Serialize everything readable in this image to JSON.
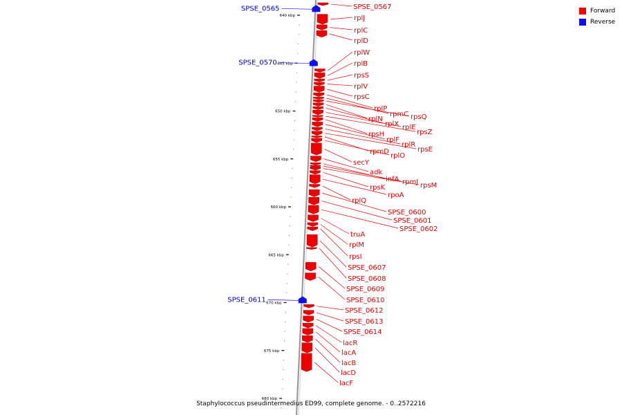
{
  "caption": "Staphylococcus pseudintermedius ED99, complete genome. - 0..2572216",
  "legend": [
    {
      "label": "Forward",
      "color": "#ee0000"
    },
    {
      "label": "Reverse",
      "color": "#1010ee"
    }
  ],
  "colors": {
    "forward": "#ee0000",
    "reverse": "#1010ee",
    "backbone": "#a0a0a0"
  },
  "ticks": [
    {
      "kbp": 640,
      "label": "640 kbp"
    },
    {
      "kbp": 645,
      "label": "645 kbp"
    },
    {
      "kbp": 650,
      "label": "650 kbp"
    },
    {
      "kbp": 655,
      "label": "655 kbp"
    },
    {
      "kbp": 660,
      "label": "660 kbp"
    },
    {
      "kbp": 665,
      "label": "665 kbp"
    },
    {
      "kbp": 670,
      "label": "670 kbp"
    },
    {
      "kbp": 675,
      "label": "675 kbp"
    },
    {
      "kbp": 680,
      "label": "680 kbp"
    }
  ],
  "reverse_genes": [
    {
      "name": "SPSE_0565",
      "kbp": 639.3
    },
    {
      "name": "SPSE_0570",
      "kbp": 644.95
    },
    {
      "name": "SPSE_0611",
      "kbp": 669.7
    }
  ],
  "forward_genes": [
    {
      "name": "SPSE_0567",
      "start": 638.7,
      "end": 639.0
    },
    {
      "name": "rplJ",
      "start": 639.9,
      "end": 640.95
    },
    {
      "name": "rplC",
      "start": 641.0,
      "end": 641.55
    },
    {
      "name": "rplD",
      "start": 641.6,
      "end": 642.3
    },
    {
      "name": "rplW",
      "start": 645.6,
      "end": 645.95
    },
    {
      "name": "rplB",
      "start": 646.0,
      "end": 646.6
    },
    {
      "name": "rpsS",
      "start": 646.65,
      "end": 646.95
    },
    {
      "name": "rplV",
      "start": 647.0,
      "end": 647.35
    },
    {
      "name": "rpsC",
      "start": 647.4,
      "end": 648.05
    },
    {
      "name": "rplP",
      "start": 648.1,
      "end": 648.5
    },
    {
      "name": "rpmC",
      "start": 648.55,
      "end": 648.78
    },
    {
      "name": "rpsQ",
      "start": 648.82,
      "end": 649.1
    },
    {
      "name": "rplN",
      "start": 649.15,
      "end": 649.5
    },
    {
      "name": "rplX",
      "start": 649.55,
      "end": 649.85
    },
    {
      "name": "rplE",
      "start": 649.9,
      "end": 650.4
    },
    {
      "name": "rpsZ",
      "start": 650.45,
      "end": 650.65
    },
    {
      "name": "rpsH",
      "start": 650.7,
      "end": 651.1
    },
    {
      "name": "rplF",
      "start": 651.15,
      "end": 651.65
    },
    {
      "name": "rplR",
      "start": 651.7,
      "end": 652.05
    },
    {
      "name": "rpsE",
      "start": 652.1,
      "end": 652.55
    },
    {
      "name": "rpmD",
      "start": 652.6,
      "end": 652.8
    },
    {
      "name": "rplO",
      "start": 652.85,
      "end": 653.3
    },
    {
      "name": "secY",
      "start": 653.35,
      "end": 654.6
    },
    {
      "name": "adk",
      "start": 654.7,
      "end": 655.3
    },
    {
      "name": "infA",
      "start": 655.4,
      "end": 655.62
    },
    {
      "name": "rpmJ",
      "start": 655.66,
      "end": 655.78
    },
    {
      "name": "rpsM",
      "start": 655.82,
      "end": 656.18
    },
    {
      "name": "rpsK",
      "start": 656.22,
      "end": 656.6
    },
    {
      "name": "rpoA",
      "start": 656.65,
      "end": 657.6
    },
    {
      "name": "rplQ",
      "start": 657.65,
      "end": 658.0
    },
    {
      "name": "SPSE_0600",
      "start": 658.2,
      "end": 658.95
    },
    {
      "name": "SPSE_0601",
      "start": 659.0,
      "end": 659.8
    },
    {
      "name": "SPSE_0602",
      "start": 659.85,
      "end": 660.75
    },
    {
      "name": "truA",
      "start": 660.85,
      "end": 661.55
    },
    {
      "name": "rplM",
      "start": 661.65,
      "end": 662.05
    },
    {
      "name": "rpsI",
      "start": 662.1,
      "end": 662.5
    },
    {
      "name": "SPSE_0607",
      "start": 662.9,
      "end": 664.2
    },
    {
      "name": "SPSE_0608",
      "start": 664.25,
      "end": 664.45
    },
    {
      "name": "SPSE_0609",
      "start": 665.8,
      "end": 666.7
    },
    {
      "name": "SPSE_0610",
      "start": 666.9,
      "end": 667.7
    },
    {
      "name": "SPSE_0612",
      "start": 670.2,
      "end": 670.55
    },
    {
      "name": "SPSE_0613",
      "start": 670.8,
      "end": 671.3
    },
    {
      "name": "SPSE_0614",
      "start": 671.4,
      "end": 672.05
    },
    {
      "name": "lacR",
      "start": 672.15,
      "end": 672.65
    },
    {
      "name": "lacA",
      "start": 672.7,
      "end": 673.4
    },
    {
      "name": "lacB",
      "start": 673.45,
      "end": 674.15
    },
    {
      "name": "lacD",
      "start": 674.2,
      "end": 675.25
    },
    {
      "name": "lacF",
      "start": 675.3,
      "end": 677.2
    }
  ],
  "forward_labels_order": [
    "SPSE_0567",
    "rplJ",
    "rplC",
    "rplD",
    "rplW",
    "rplB",
    "rpsS",
    "rplV",
    "rpsC",
    "rplP",
    "rpmC",
    "rpsQ",
    "rplN",
    "rplX",
    "rplE",
    "rpsZ",
    "rpsH",
    "rplF",
    "rplR",
    "rpsE",
    "rpmD",
    "rplO",
    "secY",
    "adk",
    "infA",
    "rpmJ",
    "rpsM",
    "rpsK",
    "rpoA",
    "rplQ",
    "SPSE_0600",
    "SPSE_0601",
    "SPSE_0602",
    "truA",
    "rplM",
    "rpsI",
    "SPSE_0607",
    "SPSE_0608",
    "SPSE_0609",
    "SPSE_0610",
    "SPSE_0612",
    "SPSE_0613",
    "SPSE_0614",
    "lacR",
    "lacA",
    "lacB",
    "lacD",
    "lacF"
  ]
}
